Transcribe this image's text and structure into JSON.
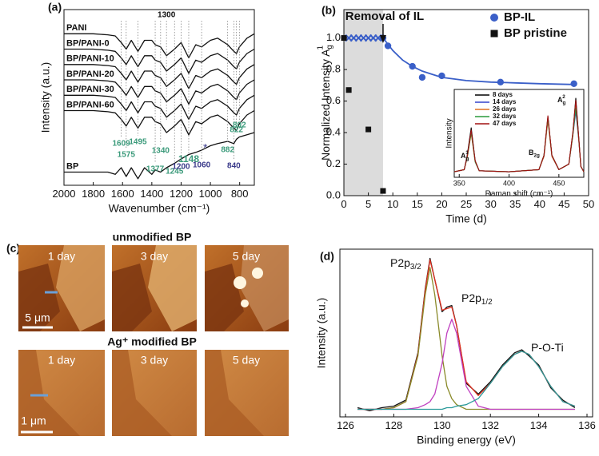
{
  "chart_data": [
    {
      "type": "line",
      "label": "(a)",
      "xlabel": "Wavenumber (cm⁻¹)",
      "ylabel": "Intensity (a.u.)",
      "xlim": [
        2000,
        700
      ],
      "xticks": [
        2000,
        1800,
        1600,
        1400,
        1200,
        1000,
        800
      ],
      "ylim": [
        0,
        8
      ],
      "x": [
        2000,
        1900,
        1800,
        1700,
        1650,
        1609,
        1575,
        1540,
        1495,
        1450,
        1400,
        1377,
        1340,
        1300,
        1245,
        1200,
        1148,
        1100,
        1060,
        1000,
        950,
        882,
        840,
        822,
        802,
        750,
        700
      ],
      "series": [
        {
          "name": "PANI",
          "color": "#111111",
          "values": [
            6.9,
            6.9,
            6.9,
            6.85,
            6.8,
            6.5,
            6.2,
            6.6,
            6.1,
            6.6,
            6.6,
            6.4,
            6.3,
            5.9,
            6.2,
            6.5,
            5.8,
            6.4,
            6.3,
            6.6,
            6.7,
            6.4,
            6.1,
            6.0,
            6.3,
            6.7,
            6.9
          ]
        },
        {
          "name": "BP/PANI-0",
          "color": "#111111",
          "values": [
            6.2,
            6.2,
            6.2,
            6.15,
            6.1,
            5.8,
            5.5,
            5.9,
            5.4,
            5.9,
            5.9,
            5.7,
            5.6,
            5.2,
            5.5,
            5.8,
            5.1,
            5.7,
            5.6,
            5.9,
            6.0,
            5.7,
            5.4,
            5.3,
            5.6,
            6.0,
            6.2
          ]
        },
        {
          "name": "BP/PANI-10",
          "color": "#111111",
          "values": [
            5.5,
            5.5,
            5.5,
            5.45,
            5.4,
            5.1,
            4.8,
            5.2,
            4.7,
            5.2,
            5.2,
            5.0,
            4.9,
            4.5,
            4.8,
            5.1,
            4.4,
            5.0,
            4.9,
            5.2,
            5.3,
            5.0,
            4.7,
            4.6,
            4.9,
            5.3,
            5.5
          ]
        },
        {
          "name": "BP/PANI-20",
          "color": "#111111",
          "values": [
            4.8,
            4.8,
            4.8,
            4.75,
            4.7,
            4.4,
            4.1,
            4.5,
            4.0,
            4.5,
            4.5,
            4.3,
            4.2,
            3.8,
            4.1,
            4.4,
            3.7,
            4.3,
            4.2,
            4.5,
            4.6,
            4.3,
            4.0,
            3.9,
            4.2,
            4.6,
            4.8
          ]
        },
        {
          "name": "BP/PANI-30",
          "color": "#111111",
          "values": [
            4.1,
            4.1,
            4.1,
            4.05,
            4.0,
            3.7,
            3.4,
            3.8,
            3.3,
            3.8,
            3.8,
            3.6,
            3.5,
            3.1,
            3.4,
            3.7,
            3.0,
            3.6,
            3.5,
            3.8,
            3.9,
            3.6,
            3.3,
            3.2,
            3.5,
            3.9,
            4.1
          ]
        },
        {
          "name": "BP/PANI-60",
          "color": "#111111",
          "values": [
            3.4,
            3.4,
            3.4,
            3.35,
            3.3,
            3.0,
            2.7,
            3.1,
            2.6,
            3.1,
            3.1,
            2.9,
            2.8,
            2.4,
            2.7,
            3.0,
            2.3,
            2.9,
            2.8,
            3.1,
            3.2,
            2.9,
            2.6,
            2.5,
            2.8,
            3.2,
            3.4
          ]
        },
        {
          "name": "BP",
          "color": "#111111",
          "values": [
            0.6,
            0.6,
            0.6,
            0.6,
            0.5,
            0.8,
            0.4,
            0.8,
            0.3,
            0.8,
            0.5,
            0.7,
            0.6,
            0.8,
            1.0,
            1.2,
            1.4,
            1.5,
            1.6,
            1.8,
            1.9,
            2.0,
            1.9,
            2.1,
            2.2,
            2.3,
            2.4
          ]
        }
      ],
      "markers": [
        {
          "value": 1300,
          "label": "1300",
          "color": "#111111"
        },
        {
          "value": 1609,
          "label": "1609",
          "color": "#3a9a7a"
        },
        {
          "value": 1575,
          "label": "1575",
          "color": "#3a9a7a"
        },
        {
          "value": 1495,
          "label": "1495",
          "color": "#3a9a7a"
        },
        {
          "value": 1340,
          "label": "1340",
          "color": "#3a9a7a"
        },
        {
          "value": 1377,
          "label": "1377",
          "color": "#3a9a7a"
        },
        {
          "value": 1245,
          "label": "1245",
          "color": "#3a9a7a"
        },
        {
          "value": 1148,
          "label": "1148",
          "color": "#3a9a7a"
        },
        {
          "value": 1200,
          "label": "1200",
          "color": "#3a3a8a"
        },
        {
          "value": 1060,
          "label": "1060",
          "color": "#3a3a8a"
        },
        {
          "value": 882,
          "label": "882",
          "color": "#3a9a7a"
        },
        {
          "value": 840,
          "label": "840",
          "color": "#3a3a8a"
        },
        {
          "value": 822,
          "label": "822",
          "color": "#3a9a7a"
        },
        {
          "value": 802,
          "label": "802",
          "color": "#3a9a7a"
        }
      ],
      "annotations": [
        "*"
      ]
    },
    {
      "type": "scatter",
      "label": "(b)",
      "xlabel": "Time (d)",
      "ylabel": {
        "text": "Normalized Intensity A",
        "sub": "g",
        "sup": "1"
      },
      "xlim": [
        0,
        50
      ],
      "xticks": [
        0,
        5,
        10,
        15,
        20,
        25,
        30,
        35,
        40,
        45,
        50
      ],
      "ylim": [
        0,
        1.18
      ],
      "yticks": [
        {
          "value": 0,
          "label": "0.0"
        },
        {
          "value": 0.2,
          "label": "0.2"
        },
        {
          "value": 0.4,
          "label": "0.4"
        },
        {
          "value": 0.6,
          "label": "0.6"
        },
        {
          "value": 0.8,
          "label": "0.8"
        },
        {
          "value": 1,
          "label": "1.0"
        }
      ],
      "shade": {
        "xlim": [
          0,
          8
        ],
        "color": "#dcdcdc"
      },
      "annotation": {
        "text": "Removal of IL",
        "x": 8
      },
      "legend": "upper right",
      "series": [
        {
          "name": "BP-IL",
          "color": "#3a5fc8",
          "marker": "circle",
          "x": [
            8,
            9,
            14,
            16,
            20,
            32,
            47
          ],
          "values": [
            1.0,
            0.95,
            0.82,
            0.75,
            0.76,
            0.72,
            0.71
          ]
        },
        {
          "color": "#3a5fc8",
          "marker": "cross",
          "x": [
            1,
            2,
            3,
            4,
            5,
            6,
            7
          ],
          "values": [
            1,
            1,
            1,
            1,
            1,
            1,
            1
          ]
        },
        {
          "name": "BP pristine",
          "color": "#111111",
          "marker": "square",
          "x": [
            0,
            1,
            5,
            8
          ],
          "values": [
            1.0,
            0.67,
            0.42,
            0.03
          ]
        },
        {
          "color": "#3a5fc8",
          "marker": "line",
          "x": [
            8,
            10,
            12,
            14,
            16,
            18,
            20,
            25,
            30,
            35,
            40,
            47
          ],
          "values": [
            1.0,
            0.92,
            0.86,
            0.82,
            0.79,
            0.77,
            0.75,
            0.73,
            0.72,
            0.715,
            0.71,
            0.705
          ]
        }
      ],
      "inset": {
        "type": "line",
        "xlabel": "Raman shift (cm⁻¹)",
        "ylabel": "Intensity",
        "xlim": [
          345,
          475
        ],
        "xticks": [
          350,
          400,
          450
        ],
        "ylim": [
          0,
          0.8
        ],
        "x": [
          345,
          355,
          358,
          362,
          366,
          370,
          400,
          430,
          435,
          439,
          443,
          450,
          460,
          464,
          467,
          470,
          472,
          475
        ],
        "series": [
          {
            "name": "8 days",
            "color": "#000000",
            "values": [
              0.05,
              0.07,
              0.2,
              0.45,
              0.15,
              0.06,
              0.05,
              0.07,
              0.2,
              0.55,
              0.2,
              0.07,
              0.12,
              0.4,
              0.72,
              0.35,
              0.1,
              0.05
            ]
          },
          {
            "name": "14 days",
            "color": "#3344cc",
            "values": [
              0.05,
              0.07,
              0.19,
              0.42,
              0.14,
              0.06,
              0.05,
              0.07,
              0.19,
              0.53,
              0.19,
              0.07,
              0.12,
              0.38,
              0.6,
              0.33,
              0.1,
              0.05
            ]
          },
          {
            "name": "26 days",
            "color": "#e07020",
            "values": [
              0.05,
              0.07,
              0.18,
              0.4,
              0.14,
              0.06,
              0.05,
              0.07,
              0.19,
              0.52,
              0.19,
              0.07,
              0.12,
              0.38,
              0.66,
              0.33,
              0.1,
              0.05
            ]
          },
          {
            "name": "32 days",
            "color": "#2a9a3a",
            "values": [
              0.05,
              0.07,
              0.18,
              0.41,
              0.14,
              0.06,
              0.05,
              0.07,
              0.2,
              0.54,
              0.2,
              0.07,
              0.12,
              0.39,
              0.63,
              0.34,
              0.1,
              0.05
            ]
          },
          {
            "name": "47 days",
            "color": "#a01010",
            "values": [
              0.05,
              0.07,
              0.19,
              0.43,
              0.15,
              0.06,
              0.05,
              0.07,
              0.2,
              0.56,
              0.2,
              0.07,
              0.12,
              0.41,
              0.7,
              0.35,
              0.1,
              0.05
            ]
          }
        ],
        "peak_labels": [
          {
            "text": "A",
            "sub": "g",
            "sup": "1"
          },
          {
            "text": "B",
            "sub": "2g"
          },
          {
            "text": "A",
            "sub": "g",
            "sup": "2"
          }
        ]
      }
    },
    {
      "type": "line",
      "label": "(d)",
      "xlabel": "Binding energy (eV)",
      "ylabel": "Intensity (a.u.)",
      "xlim": [
        126,
        136
      ],
      "xticks": [
        126,
        128,
        130,
        132,
        134,
        136
      ],
      "ylim": [
        0,
        1.1
      ],
      "x": [
        126.5,
        127,
        127.5,
        128,
        128.5,
        129,
        129.3,
        129.5,
        129.7,
        130,
        130.2,
        130.4,
        130.6,
        131,
        131.5,
        132,
        132.5,
        133,
        133.3,
        133.6,
        134,
        134.5,
        135,
        135.5
      ],
      "series": [
        {
          "color": "#111111",
          "values": [
            0.06,
            0.04,
            0.06,
            0.07,
            0.11,
            0.42,
            0.84,
            1.04,
            0.9,
            0.69,
            0.72,
            0.73,
            0.6,
            0.22,
            0.15,
            0.23,
            0.34,
            0.42,
            0.44,
            0.4,
            0.34,
            0.19,
            0.11,
            0.06
          ]
        },
        {
          "color": "#e03020",
          "values": [
            0.05,
            0.05,
            0.05,
            0.06,
            0.1,
            0.41,
            0.83,
            1.03,
            0.9,
            0.7,
            0.71,
            0.72,
            0.6,
            0.23,
            0.14,
            0.22,
            0.33,
            0.41,
            0.43,
            0.41,
            0.33,
            0.2,
            0.1,
            0.07
          ]
        },
        {
          "color": "#8a8a2a",
          "values": [
            0.05,
            0.05,
            0.05,
            0.06,
            0.1,
            0.4,
            0.8,
            0.98,
            0.8,
            0.4,
            0.2,
            0.12,
            0.08,
            0.05,
            0.05,
            0.05,
            0.05,
            0.05,
            0.05,
            0.05,
            0.05,
            0.05,
            0.05,
            0.05
          ]
        },
        {
          "color": "#c040c0",
          "values": [
            0.05,
            0.05,
            0.05,
            0.05,
            0.05,
            0.06,
            0.08,
            0.1,
            0.15,
            0.35,
            0.55,
            0.64,
            0.55,
            0.2,
            0.07,
            0.05,
            0.05,
            0.05,
            0.05,
            0.05,
            0.05,
            0.05,
            0.05,
            0.05
          ]
        },
        {
          "color": "#2a9a9a",
          "values": [
            0.05,
            0.05,
            0.05,
            0.05,
            0.05,
            0.05,
            0.05,
            0.05,
            0.05,
            0.05,
            0.06,
            0.06,
            0.07,
            0.08,
            0.12,
            0.22,
            0.33,
            0.41,
            0.43,
            0.41,
            0.33,
            0.2,
            0.1,
            0.07
          ]
        }
      ],
      "peak_labels": [
        {
          "text": "P2p",
          "sub": "3/2"
        },
        {
          "text": "P2p",
          "sub": "1/2"
        },
        {
          "text": "P-O-Ti"
        }
      ]
    }
  ],
  "images": {
    "label": "(c)",
    "rows": [
      {
        "title": "unmodified BP",
        "images": [
          "1 day",
          "3 day",
          "5 day"
        ],
        "scale_bar": "5 μm"
      },
      {
        "title": "Ag⁺ modified BP",
        "images": [
          "1 day",
          "3 day",
          "5 day"
        ],
        "scale_bar": "1 μm"
      }
    ]
  }
}
